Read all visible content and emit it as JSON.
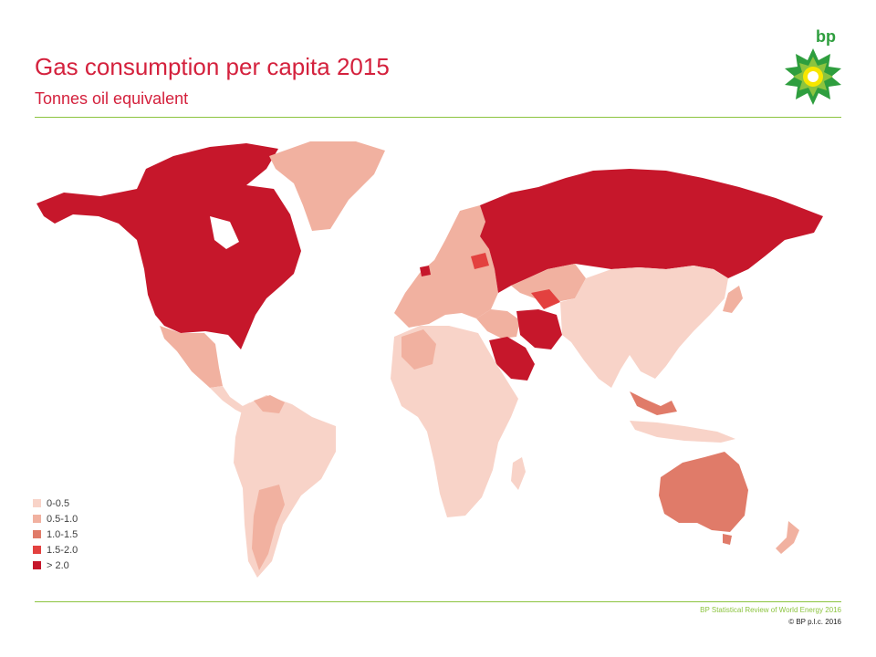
{
  "header": {
    "title": "Gas consumption per capita 2015",
    "subtitle": "Tonnes oil equivalent"
  },
  "logo": {
    "text": "bp",
    "icon": "bp-helios-sunflower"
  },
  "legend": [
    {
      "label": "0-0.5",
      "color": "#f8d3c8"
    },
    {
      "label": "0.5-1.0",
      "color": "#f1b1a0"
    },
    {
      "label": "1.0-1.5",
      "color": "#e07b69"
    },
    {
      "label": "1.5-2.0",
      "color": "#e3413f"
    },
    {
      "label": "> 2.0",
      "color": "#c6172b"
    }
  ],
  "map": {
    "regions": [
      {
        "name": "North America (Canada, USA)",
        "bin": "> 2.0"
      },
      {
        "name": "Greenland",
        "bin": "0.5-1.0"
      },
      {
        "name": "Mexico",
        "bin": "0.5-1.0"
      },
      {
        "name": "Central America",
        "bin": "0-0.5"
      },
      {
        "name": "South America",
        "bin": "0-0.5"
      },
      {
        "name": "Argentina",
        "bin": "0.5-1.0"
      },
      {
        "name": "Venezuela",
        "bin": "0.5-1.0"
      },
      {
        "name": "Europe",
        "bin": "0.5-1.0"
      },
      {
        "name": "Netherlands",
        "bin": "> 2.0"
      },
      {
        "name": "Belarus",
        "bin": "1.5-2.0"
      },
      {
        "name": "Russia",
        "bin": "> 2.0"
      },
      {
        "name": "Africa",
        "bin": "0-0.5"
      },
      {
        "name": "Algeria",
        "bin": "0.5-1.0"
      },
      {
        "name": "Saudi Arabia & Gulf",
        "bin": "> 2.0"
      },
      {
        "name": "Iran",
        "bin": "> 2.0"
      },
      {
        "name": "Turkmenistan",
        "bin": "1.5-2.0"
      },
      {
        "name": "Asia",
        "bin": "0-0.5"
      },
      {
        "name": "Malaysia",
        "bin": "1.0-1.5"
      },
      {
        "name": "Australia",
        "bin": "1.0-1.5"
      },
      {
        "name": "New Zealand",
        "bin": "0.5-1.0"
      },
      {
        "name": "Japan",
        "bin": "0.5-1.0"
      }
    ]
  },
  "footer": {
    "source": "BP Statistical Review of World Energy 2016",
    "copyright": "© BP p.l.c. 2016"
  }
}
